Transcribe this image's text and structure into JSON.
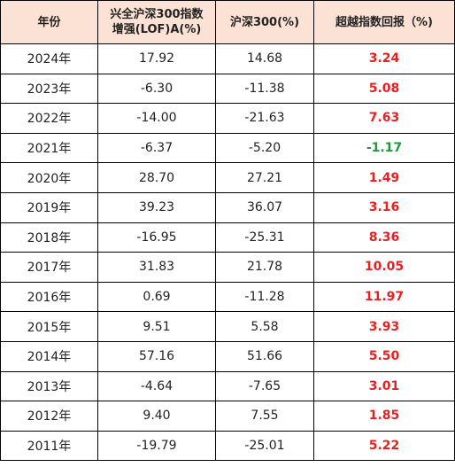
{
  "table": {
    "headers": [
      {
        "lines": [
          "年份"
        ]
      },
      {
        "lines": [
          "兴全沪深300指数",
          "增强(LOF)A(%)"
        ]
      },
      {
        "lines": [
          "沪深300(%)"
        ]
      },
      {
        "lines": [
          "超越指数回报（%)"
        ]
      }
    ],
    "colors": {
      "header_bg": "#fbe2d5",
      "positive": "#e8201f",
      "negative": "#1a9a3c"
    },
    "rows": [
      {
        "year": "2024年",
        "fund": "17.92",
        "index": "14.68",
        "excess": "3.24",
        "sign": "positive"
      },
      {
        "year": "2023年",
        "fund": "-6.30",
        "index": "-11.38",
        "excess": "5.08",
        "sign": "positive"
      },
      {
        "year": "2022年",
        "fund": "-14.00",
        "index": "-21.63",
        "excess": "7.63",
        "sign": "positive"
      },
      {
        "year": "2021年",
        "fund": "-6.37",
        "index": "-5.20",
        "excess": "-1.17",
        "sign": "negative"
      },
      {
        "year": "2020年",
        "fund": "28.70",
        "index": "27.21",
        "excess": "1.49",
        "sign": "positive"
      },
      {
        "year": "2019年",
        "fund": "39.23",
        "index": "36.07",
        "excess": "3.16",
        "sign": "positive"
      },
      {
        "year": "2018年",
        "fund": "-16.95",
        "index": "-25.31",
        "excess": "8.36",
        "sign": "positive"
      },
      {
        "year": "2017年",
        "fund": "31.83",
        "index": "21.78",
        "excess": "10.05",
        "sign": "positive"
      },
      {
        "year": "2016年",
        "fund": "0.69",
        "index": "-11.28",
        "excess": "11.97",
        "sign": "positive"
      },
      {
        "year": "2015年",
        "fund": "9.51",
        "index": "5.58",
        "excess": "3.93",
        "sign": "positive"
      },
      {
        "year": "2014年",
        "fund": "57.16",
        "index": "51.66",
        "excess": "5.50",
        "sign": "positive"
      },
      {
        "year": "2013年",
        "fund": "-4.64",
        "index": "-7.65",
        "excess": "3.01",
        "sign": "positive"
      },
      {
        "year": "2012年",
        "fund": "9.40",
        "index": "7.55",
        "excess": "1.85",
        "sign": "positive"
      },
      {
        "year": "2011年",
        "fund": "-19.79",
        "index": "-25.01",
        "excess": "5.22",
        "sign": "positive"
      }
    ]
  }
}
